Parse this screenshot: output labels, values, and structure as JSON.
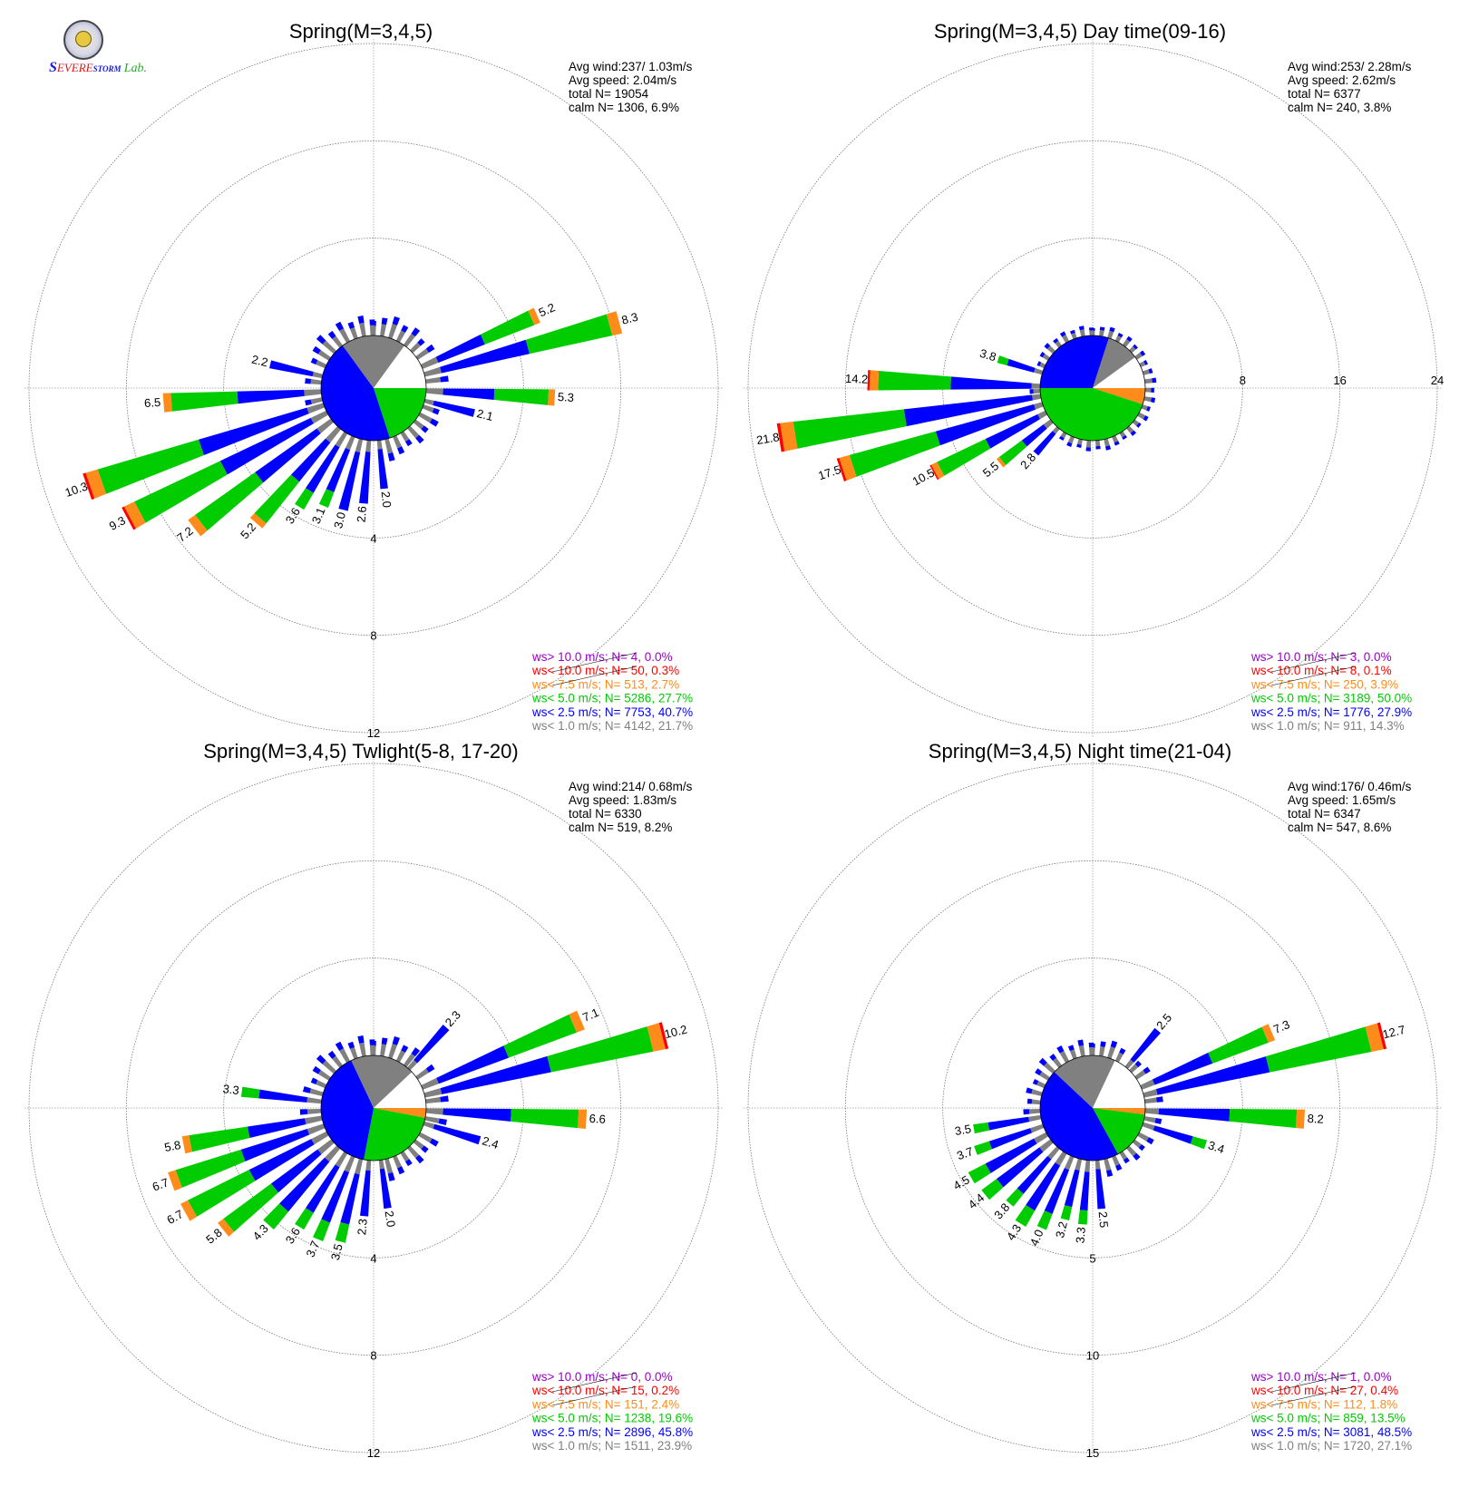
{
  "logo": {
    "name": "SEVERE STORM Lab."
  },
  "legend_colors": {
    "gt10": "#9900cc",
    "lt10": "#ff0000",
    "lt7_5": "#ff8c1a",
    "lt5": "#00cc00",
    "lt2_5": "#0000ff",
    "lt1": "#808080"
  },
  "chart_data": [
    {
      "type": "windrose",
      "title": "Spring(M=3,4,5)",
      "stats": [
        "Avg wind:237/ 1.03m/s",
        "Avg speed: 2.04m/s",
        "total N=      19054",
        "calm N=   1306,   6.9%"
      ],
      "rings": [
        4,
        8,
        12
      ],
      "ring_label_position": "bottom",
      "calm_pie": {
        "lt5": 20.0,
        "lt2_5": 45.0,
        "lt1": 20.0,
        "none": 15.0
      },
      "petal_labels": [
        {
          "dir": 66,
          "label": "5.2"
        },
        {
          "dir": 75,
          "label": "8.3"
        },
        {
          "dir": 93,
          "label": "5.3"
        },
        {
          "dir": 104,
          "label": "2.1"
        },
        {
          "dir": 174,
          "label": "2.0"
        },
        {
          "dir": 185,
          "label": "2.6"
        },
        {
          "dir": 194,
          "label": "3.0"
        },
        {
          "dir": 203,
          "label": "3.1"
        },
        {
          "dir": 212,
          "label": "3.6"
        },
        {
          "dir": 221,
          "label": "5.2"
        },
        {
          "dir": 232,
          "label": "7.2"
        },
        {
          "dir": 242,
          "label": "9.3"
        },
        {
          "dir": 251,
          "label": "10.3"
        },
        {
          "dir": 266,
          "label": "6.5"
        },
        {
          "dir": 283,
          "label": "2.2"
        }
      ],
      "legend": [
        {
          "key": "gt10",
          "text": "ws> 10.0 m/s; N=     4,  0.0%"
        },
        {
          "key": "lt10",
          "text": "ws< 10.0 m/s; N=    50,  0.3%"
        },
        {
          "key": "lt7_5",
          "text": "ws<  7.5 m/s; N=   513,  2.7%"
        },
        {
          "key": "lt5",
          "text": "ws<  5.0 m/s; N=  5286, 27.7%"
        },
        {
          "key": "lt2_5",
          "text": "ws<  2.5 m/s; N=  7753, 40.7%"
        },
        {
          "key": "lt1",
          "text": "ws<  1.0 m/s; N=  4142, 21.7%"
        }
      ]
    },
    {
      "type": "windrose",
      "title": "Spring(M=3,4,5) Day time(09-16)",
      "stats": [
        "Avg wind:253/ 2.28m/s",
        "Avg speed: 2.62m/s",
        "total N=       6377",
        "calm N=    240,   3.8%"
      ],
      "rings": [
        8,
        16,
        24
      ],
      "ring_label_position": "right",
      "calm_pie": {
        "lt7_5": 5.0,
        "lt5": 45.0,
        "lt2_5": 30.0,
        "lt1": 10.0,
        "none": 10.0
      },
      "petal_labels": [
        {
          "dir": 221,
          "label": "2.8"
        },
        {
          "dir": 231,
          "label": "5.5"
        },
        {
          "dir": 242,
          "label": "10.5"
        },
        {
          "dir": 252,
          "label": "17.5"
        },
        {
          "dir": 261,
          "label": "21.8"
        },
        {
          "dir": 272,
          "label": "14.2"
        },
        {
          "dir": 287,
          "label": "3.8"
        }
      ],
      "legend": [
        {
          "key": "gt10",
          "text": "ws> 10.0 m/s; N=     3,  0.0%"
        },
        {
          "key": "lt10",
          "text": "ws< 10.0 m/s; N=     8,  0.1%"
        },
        {
          "key": "lt7_5",
          "text": "ws<  7.5 m/s; N=   250,  3.9%"
        },
        {
          "key": "lt5",
          "text": "ws<  5.0 m/s; N=  3189, 50.0%"
        },
        {
          "key": "lt2_5",
          "text": "ws<  2.5 m/s; N=  1776, 27.9%"
        },
        {
          "key": "lt1",
          "text": "ws<  1.0 m/s; N=   911, 14.3%"
        }
      ]
    },
    {
      "type": "windrose",
      "title": "Spring(M=3,4,5) Twlight(5-8, 17-20)",
      "stats": [
        "Avg wind:214/ 0.68m/s",
        "Avg speed: 1.83m/s",
        "total N=       6330",
        "calm N=    519,   8.2%"
      ],
      "rings": [
        4,
        8,
        12
      ],
      "ring_label_position": "bottom",
      "calm_pie": {
        "lt7_5": 3.0,
        "lt5": 25.0,
        "lt2_5": 40.0,
        "lt1": 20.0,
        "none": 12.0
      },
      "petal_labels": [
        {
          "dir": 42,
          "label": "2.3"
        },
        {
          "dir": 67,
          "label": "7.1"
        },
        {
          "dir": 76,
          "label": "10.2"
        },
        {
          "dir": 93,
          "label": "6.6"
        },
        {
          "dir": 107,
          "label": "2.4"
        },
        {
          "dir": 172,
          "label": "2.0"
        },
        {
          "dir": 185,
          "label": "2.3"
        },
        {
          "dir": 194,
          "label": "3.5"
        },
        {
          "dir": 203,
          "label": "3.7"
        },
        {
          "dir": 212,
          "label": "3.6"
        },
        {
          "dir": 222,
          "label": "4.3"
        },
        {
          "dir": 231,
          "label": "5.8"
        },
        {
          "dir": 241,
          "label": "6.7"
        },
        {
          "dir": 250,
          "label": "6.7"
        },
        {
          "dir": 259,
          "label": "5.8"
        },
        {
          "dir": 277,
          "label": "3.3"
        }
      ],
      "legend": [
        {
          "key": "gt10",
          "text": "ws> 10.0 m/s; N=     0,  0.0%"
        },
        {
          "key": "lt10",
          "text": "ws< 10.0 m/s; N=    15,  0.2%"
        },
        {
          "key": "lt7_5",
          "text": "ws<  7.5 m/s; N=   151,  2.4%"
        },
        {
          "key": "lt5",
          "text": "ws<  5.0 m/s; N=  1238, 19.6%"
        },
        {
          "key": "lt2_5",
          "text": "ws<  2.5 m/s; N=  2896, 45.8%"
        },
        {
          "key": "lt1",
          "text": "ws<  1.0 m/s; N=  1511, 23.9%"
        }
      ]
    },
    {
      "type": "windrose",
      "title": "Spring(M=3,4,5) Night time(21-04)",
      "stats": [
        "Avg wind:176/ 0.46m/s",
        "Avg speed: 1.65m/s",
        "total N=       6347",
        "calm N=    547,   8.6%"
      ],
      "rings": [
        5,
        10,
        15
      ],
      "ring_label_position": "bottom",
      "calm_pie": {
        "lt7_5": 2.0,
        "lt5": 15.0,
        "lt2_5": 45.0,
        "lt1": 20.0,
        "none": 18.0
      },
      "petal_labels": [
        {
          "dir": 40,
          "label": "2.5"
        },
        {
          "dir": 67,
          "label": "7.3"
        },
        {
          "dir": 76,
          "label": "12.7"
        },
        {
          "dir": 93,
          "label": "8.2"
        },
        {
          "dir": 108,
          "label": "3.4"
        },
        {
          "dir": 175,
          "label": "2.5"
        },
        {
          "dir": 185,
          "label": "3.3"
        },
        {
          "dir": 194,
          "label": "3.2"
        },
        {
          "dir": 203,
          "label": "4.0"
        },
        {
          "dir": 212,
          "label": "4.3"
        },
        {
          "dir": 221,
          "label": "3.8"
        },
        {
          "dir": 231,
          "label": "4.4"
        },
        {
          "dir": 240,
          "label": "4.5"
        },
        {
          "dir": 250,
          "label": "3.7"
        },
        {
          "dir": 260,
          "label": "3.5"
        }
      ],
      "legend": [
        {
          "key": "gt10",
          "text": "ws> 10.0 m/s; N=     1,  0.0%"
        },
        {
          "key": "lt10",
          "text": "ws< 10.0 m/s; N=    27,  0.4%"
        },
        {
          "key": "lt7_5",
          "text": "ws<  7.5 m/s; N=   112,  1.8%"
        },
        {
          "key": "lt5",
          "text": "ws<  5.0 m/s; N=   859, 13.5%"
        },
        {
          "key": "lt2_5",
          "text": "ws<  2.5 m/s; N=  3081, 48.5%"
        },
        {
          "key": "lt1",
          "text": "ws<  1.0 m/s; N=  1720, 27.1%"
        }
      ]
    }
  ]
}
